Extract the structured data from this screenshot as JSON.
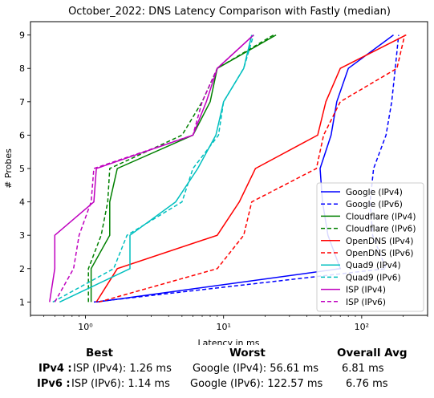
{
  "chart_data": {
    "type": "line",
    "title": "October_2022: DNS Latency Comparison with Fastly (median)",
    "xlabel": "Latency in ms",
    "ylabel": "# Probes",
    "xscale": "log",
    "xlim": [
      0.4,
      300
    ],
    "ylim": [
      0.6,
      9.4
    ],
    "x_ticks": [
      1,
      10,
      100
    ],
    "x_tick_labels": [
      "10⁰",
      "10¹",
      "10²"
    ],
    "y_ticks": [
      1,
      2,
      3,
      4,
      5,
      6,
      7,
      8,
      9
    ],
    "y_tick_labels": [
      "1",
      "2",
      "3",
      "4",
      "5",
      "6",
      "7",
      "8",
      "9"
    ],
    "legend_position": "lower-right",
    "series": [
      {
        "name": "Google (IPv4)",
        "color": "#0000ff",
        "dash": "solid",
        "x": [
          1.2,
          70,
          57,
          52,
          50,
          60,
          66,
          80,
          170
        ],
        "y": [
          1,
          2,
          3,
          4,
          5,
          6,
          7,
          8,
          9
        ]
      },
      {
        "name": "Google (IPv6)",
        "color": "#0000ff",
        "dash": "dashed",
        "x": [
          1.15,
          150,
          120,
          115,
          122,
          150,
          165,
          175,
          185
        ],
        "y": [
          1,
          2,
          3,
          4,
          5,
          6,
          7,
          8,
          9
        ]
      },
      {
        "name": "Cloudflare (IPv4)",
        "color": "#008000",
        "dash": "solid",
        "x": [
          1.1,
          1.1,
          1.5,
          1.5,
          1.7,
          6,
          8,
          9,
          24
        ],
        "y": [
          1,
          2,
          3,
          4,
          5,
          6,
          7,
          8,
          9
        ]
      },
      {
        "name": "Cloudflare (IPv6)",
        "color": "#008000",
        "dash": "dashed",
        "x": [
          1.05,
          1.05,
          1.3,
          1.45,
          1.5,
          5,
          7,
          9,
          23
        ],
        "y": [
          1,
          2,
          3,
          4,
          5,
          6,
          7,
          8,
          9
        ]
      },
      {
        "name": "OpenDNS (IPv4)",
        "color": "#ff0000",
        "dash": "solid",
        "x": [
          1.2,
          1.7,
          9,
          13,
          17,
          48,
          55,
          70,
          210
        ],
        "y": [
          1,
          2,
          3,
          4,
          5,
          6,
          7,
          8,
          9
        ]
      },
      {
        "name": "OpenDNS (IPv6)",
        "color": "#ff0000",
        "dash": "dashed",
        "x": [
          1.25,
          9,
          14,
          16,
          47,
          53,
          70,
          180,
          205
        ],
        "y": [
          1,
          2,
          3,
          4,
          5,
          6,
          7,
          8,
          9
        ]
      },
      {
        "name": "Quad9 (IPv4)",
        "color": "#00bfbf",
        "dash": "solid",
        "x": [
          0.65,
          2.1,
          2.1,
          4.5,
          6.5,
          8.8,
          10,
          14,
          16
        ],
        "y": [
          1,
          2,
          3,
          4,
          5,
          6,
          7,
          8,
          9
        ]
      },
      {
        "name": "Quad9 (IPv6)",
        "color": "#00bfbf",
        "dash": "dashed",
        "x": [
          0.58,
          1.6,
          2,
          5,
          6,
          9.2,
          10,
          14,
          16.5
        ],
        "y": [
          1,
          2,
          3,
          4,
          5,
          6,
          7,
          8,
          9
        ]
      },
      {
        "name": "ISP (IPv4)",
        "color": "#bf00bf",
        "dash": "solid",
        "x": [
          0.55,
          0.6,
          0.6,
          1.15,
          1.2,
          6,
          7.5,
          9,
          16.5
        ],
        "y": [
          1,
          2,
          3,
          4,
          5,
          6,
          7,
          8,
          9
        ]
      },
      {
        "name": "ISP (IPv6)",
        "color": "#bf00bf",
        "dash": "dashed",
        "x": [
          0.6,
          0.82,
          0.9,
          1.1,
          1.15,
          6,
          7,
          9,
          16.5
        ],
        "y": [
          1,
          2,
          3,
          4,
          5,
          6,
          7,
          8,
          9
        ]
      }
    ]
  },
  "summary": {
    "headers": {
      "best": "Best",
      "worst": "Worst",
      "avg": "Overall Avg"
    },
    "rows": [
      {
        "label": "IPv4 :",
        "best": "ISP (IPv4): 1.26 ms",
        "worst": "Google (IPv4): 56.61 ms",
        "avg": "6.81 ms"
      },
      {
        "label": "IPv6 :",
        "best": "ISP (IPv6): 1.14 ms",
        "worst": "Google (IPv6): 122.57 ms",
        "avg": "6.76 ms"
      }
    ]
  }
}
